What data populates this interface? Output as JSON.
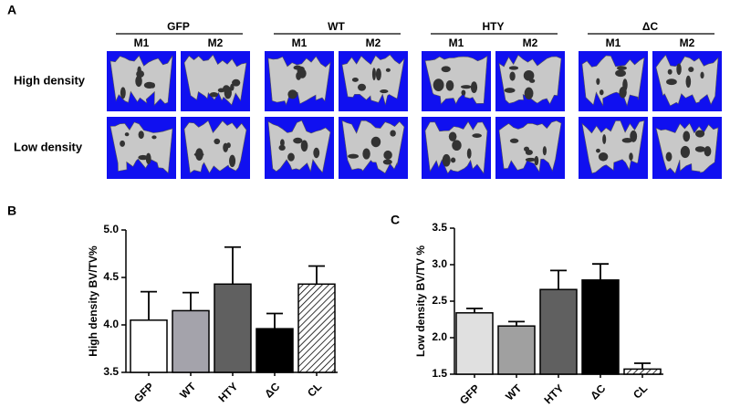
{
  "panel_a": {
    "label": "A",
    "groups": [
      "GFP",
      "WT",
      "HTY",
      "ΔC"
    ],
    "subgroups": [
      "M1",
      "M2"
    ],
    "rows": [
      "High density",
      "Low density"
    ]
  },
  "chart_data": [
    {
      "type": "bar",
      "label": "B",
      "y_label": "High density BV/TV%",
      "categories": [
        "GFP",
        "WT",
        "HTY",
        "ΔC",
        "CL"
      ],
      "values": [
        4.05,
        4.15,
        4.43,
        3.96,
        4.43
      ],
      "errors": [
        0.3,
        0.19,
        0.39,
        0.16,
        0.19
      ],
      "colors": [
        "#ffffff",
        "#a4a3ab",
        "#606060",
        "#000000",
        "#ffffff"
      ],
      "patterns": [
        null,
        null,
        null,
        null,
        "hatch"
      ],
      "ylim": [
        3.5,
        5.0
      ],
      "yticks": [
        3.5,
        {
          "value": 4,
          "label": "4.0"
        },
        4.5,
        {
          "value": 5,
          "label": "5.0"
        }
      ]
    },
    {
      "type": "bar",
      "label": "C",
      "y_label": "Low density  BV/TV %",
      "categories": [
        "GFP",
        "WT",
        "HTY",
        "ΔC",
        "CL"
      ],
      "values": [
        2.34,
        2.16,
        2.66,
        2.79,
        1.57
      ],
      "errors": [
        0.06,
        0.06,
        0.26,
        0.22,
        0.08
      ],
      "colors": [
        "#e0e0e0",
        "#a0a0a0",
        "#606060",
        "#000000",
        "#ffffff"
      ],
      "patterns": [
        null,
        null,
        null,
        null,
        "hatch"
      ],
      "ylim": [
        1.5,
        3.5
      ],
      "yticks": [
        1.5,
        {
          "value": 2,
          "label": "2.0"
        },
        2.5,
        {
          "value": 3,
          "label": "3.0"
        },
        3.5
      ]
    }
  ]
}
